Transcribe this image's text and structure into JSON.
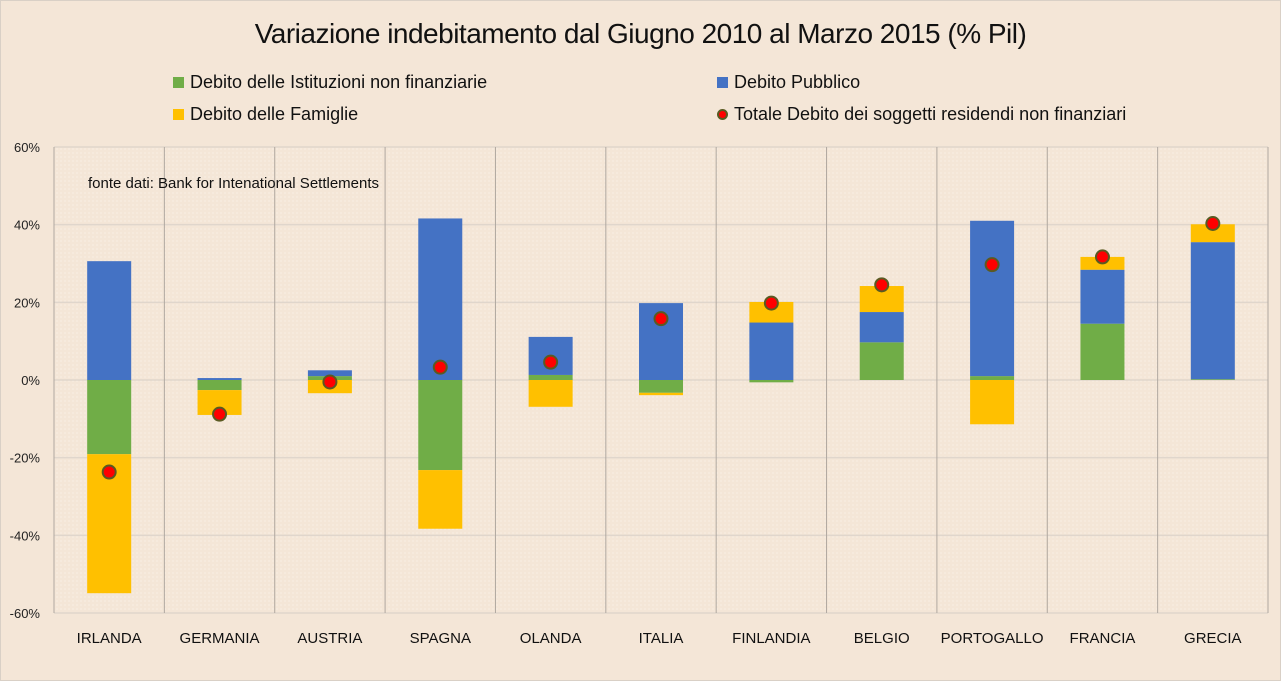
{
  "chart_data": {
    "type": "bar",
    "stacked": true,
    "title": "Variazione indebitamento dal Giugno 2010 al Marzo 2015 (% Pil)",
    "annotation": "fonte dati: Bank for Intenational Settlements",
    "xlabel": "",
    "ylabel": "",
    "ylim": [
      -60,
      60
    ],
    "yticks": [
      60,
      40,
      20,
      0,
      -20,
      -40,
      -60
    ],
    "ytick_labels": [
      "60%",
      "40%",
      "20%",
      "0%",
      "-20%",
      "-40%",
      "-60%"
    ],
    "grid": true,
    "legend_position": "top",
    "categories": [
      "IRLANDA",
      "GERMANIA",
      "AUSTRIA",
      "SPAGNA",
      "OLANDA",
      "ITALIA",
      "FINLANDIA",
      "BELGIO",
      "PORTOGALLO",
      "FRANCIA",
      "GRECIA"
    ],
    "series": [
      {
        "name": "Debito delle Istituzioni non finanziarie",
        "kind": "bar",
        "color": "#70ad47",
        "values": [
          -19.1,
          -2.6,
          1.0,
          -23.2,
          1.3,
          -3.3,
          -0.6,
          9.7,
          1.0,
          14.5,
          0.2
        ]
      },
      {
        "name": "Debito Pubblico",
        "kind": "bar",
        "color": "#4472c4",
        "values": [
          30.6,
          0.5,
          1.5,
          41.6,
          9.8,
          19.8,
          14.8,
          7.8,
          40.0,
          13.9,
          35.3
        ]
      },
      {
        "name": "Debito delle Famiglie",
        "kind": "bar",
        "color": "#ffc000",
        "values": [
          -35.8,
          -6.4,
          -3.4,
          -15.1,
          -6.9,
          -0.6,
          5.3,
          6.7,
          -11.4,
          3.3,
          4.6
        ]
      },
      {
        "name": "Totale Debito dei soggetti residendi non finanziari",
        "kind": "marker",
        "color": "#ff0000",
        "values": [
          -23.7,
          -8.8,
          -0.5,
          3.3,
          4.6,
          15.8,
          19.8,
          24.5,
          29.7,
          31.7,
          40.3
        ]
      }
    ]
  },
  "legend": [
    {
      "label": "Debito delle Istituzioni non finanziarie",
      "color": "#70ad47"
    },
    {
      "label": "Debito Pubblico",
      "color": "#4472c4"
    },
    {
      "label": "Debito delle Famiglie",
      "color": "#ffc000"
    },
    {
      "label": "Totale Debito dei soggetti residendi non finanziari",
      "color": "#ff0000"
    }
  ]
}
